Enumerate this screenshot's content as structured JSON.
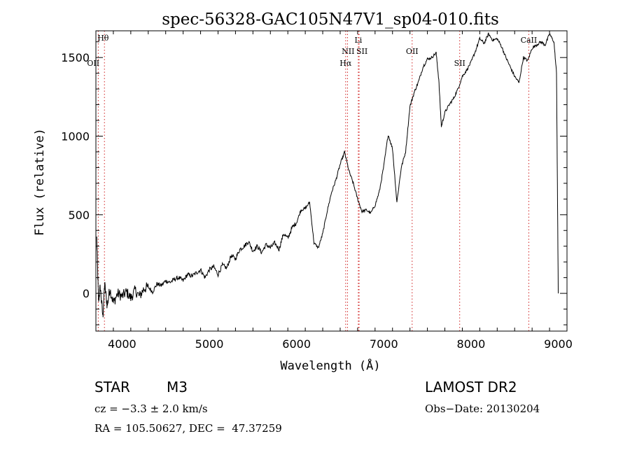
{
  "chart_data": {
    "type": "line",
    "title": "spec-56328-GAC105N47V1_sp04-010.fits",
    "xlabel": "Wavelength (Å)",
    "ylabel": "Flux (relative)",
    "xlim": [
      3700,
      9100
    ],
    "ylim": [
      -240,
      1670
    ],
    "xticks": [
      4000,
      5000,
      6000,
      7000,
      8000,
      9000
    ],
    "yticks": [
      0,
      500,
      1000,
      1500
    ],
    "grid": false,
    "line_color": "#000000",
    "marker_color": "#d02020",
    "spectral_lines": [
      {
        "label": "Hθ",
        "wavelength": 3798
      },
      {
        "label": "OII",
        "wavelength": 3727
      },
      {
        "label": "Hα",
        "wavelength": 6563
      },
      {
        "label": "NII",
        "wavelength": 6584
      },
      {
        "label": "Li",
        "wavelength": 6708
      },
      {
        "label": "SII",
        "wavelength": 6717
      },
      {
        "label": "OII",
        "wavelength": 7325
      },
      {
        "label": "SII",
        "wavelength": 7870
      },
      {
        "label": "CaII",
        "wavelength": 8662
      }
    ],
    "series": [
      {
        "values_x": [
          3710,
          3730,
          3750,
          3780,
          3800,
          3830,
          3860,
          3900,
          3950,
          4000,
          4050,
          4100,
          4150,
          4200,
          4250,
          4300,
          4350,
          4400,
          4450,
          4500,
          4550,
          4600,
          4650,
          4700,
          4750,
          4800,
          4850,
          4900,
          4950,
          5000,
          5050,
          5100,
          5150,
          5200,
          5250,
          5300,
          5350,
          5400,
          5450,
          5500,
          5550,
          5600,
          5650,
          5700,
          5750,
          5800,
          5850,
          5900,
          5950,
          6000,
          6050,
          6100,
          6150,
          6200,
          6250,
          6300,
          6350,
          6400,
          6450,
          6500,
          6550,
          6600,
          6650,
          6700,
          6750,
          6800,
          6850,
          6900,
          6950,
          7000,
          7050,
          7100,
          7150,
          7200,
          7250,
          7300,
          7350,
          7400,
          7450,
          7500,
          7550,
          7600,
          7630,
          7660,
          7700,
          7750,
          7800,
          7850,
          7900,
          7950,
          8000,
          8050,
          8100,
          8150,
          8200,
          8250,
          8300,
          8350,
          8400,
          8450,
          8500,
          8550,
          8600,
          8650,
          8700,
          8750,
          8800,
          8850,
          8900,
          8950,
          8980,
          9000
        ],
        "values_y": [
          350,
          -50,
          40,
          -150,
          60,
          -80,
          30,
          -60,
          0,
          -20,
          10,
          -30,
          20,
          -20,
          30,
          40,
          10,
          60,
          50,
          80,
          70,
          90,
          100,
          80,
          120,
          110,
          130,
          150,
          100,
          150,
          170,
          120,
          180,
          160,
          240,
          220,
          280,
          300,
          330,
          270,
          300,
          260,
          310,
          290,
          320,
          280,
          380,
          350,
          420,
          450,
          530,
          540,
          580,
          320,
          290,
          380,
          520,
          640,
          720,
          820,
          900,
          780,
          700,
          600,
          520,
          530,
          510,
          560,
          650,
          810,
          1010,
          920,
          580,
          800,
          900,
          1190,
          1280,
          1350,
          1440,
          1490,
          1500,
          1530,
          1360,
          1060,
          1150,
          1200,
          1240,
          1300,
          1380,
          1420,
          1470,
          1540,
          1620,
          1590,
          1650,
          1610,
          1620,
          1570,
          1500,
          1440,
          1380,
          1340,
          1500,
          1480,
          1560,
          1580,
          1600,
          1580,
          1650,
          1600,
          1400,
          0
        ]
      }
    ]
  },
  "info": {
    "object_type": "STAR",
    "subclass": "M3",
    "survey": "LAMOST DR2",
    "redshift": "cz = −3.3 ± 2.0 km/s",
    "obs_date": "Obs−Date: 20130204",
    "coordinates": "RA = 105.50627, DEC =  47.37259"
  }
}
